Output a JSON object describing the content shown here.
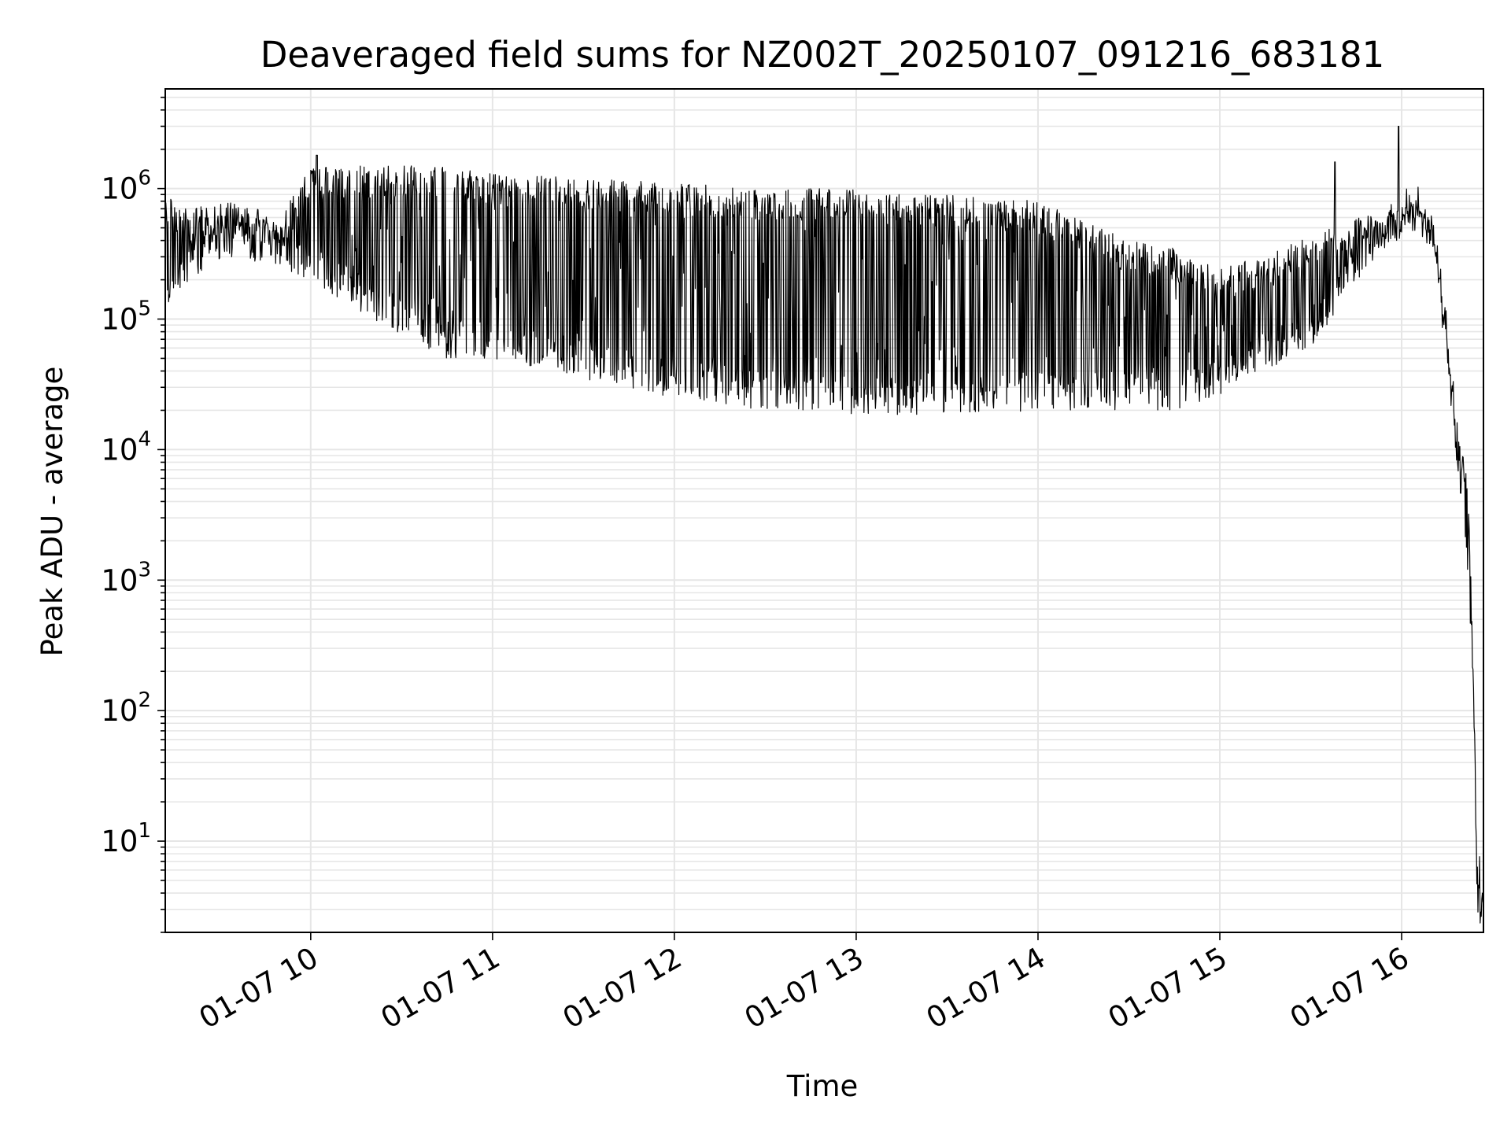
{
  "chart_data": {
    "type": "line",
    "title": "Deaveraged field sums for NZ002T_20250107_091216_683181",
    "xlabel": "Time",
    "ylabel": "Peak ADU - average",
    "y_scale": "log",
    "ylim": [
      2,
      5800000
    ],
    "xlim": [
      "2025-01-07 09:12",
      "2025-01-07 16:27"
    ],
    "grid": true,
    "line_color": "#000000",
    "grid_color": "#e6e6e6",
    "x_ticks": [
      {
        "value": "2025-01-07 10:00",
        "label": "01-07 10"
      },
      {
        "value": "2025-01-07 11:00",
        "label": "01-07 11"
      },
      {
        "value": "2025-01-07 12:00",
        "label": "01-07 12"
      },
      {
        "value": "2025-01-07 13:00",
        "label": "01-07 13"
      },
      {
        "value": "2025-01-07 14:00",
        "label": "01-07 14"
      },
      {
        "value": "2025-01-07 15:00",
        "label": "01-07 15"
      },
      {
        "value": "2025-01-07 16:00",
        "label": "01-07 16"
      }
    ],
    "y_ticks": [
      {
        "value": 10,
        "base": "10",
        "exp": "1"
      },
      {
        "value": 100,
        "base": "10",
        "exp": "2"
      },
      {
        "value": 1000,
        "base": "10",
        "exp": "3"
      },
      {
        "value": 10000,
        "base": "10",
        "exp": "4"
      },
      {
        "value": 100000,
        "base": "10",
        "exp": "5"
      },
      {
        "value": 1000000,
        "base": "10",
        "exp": "6"
      }
    ],
    "series": [
      {
        "envelope": [
          {
            "time": "2025-01-07 09:12",
            "high": 900000,
            "low": 120000
          },
          {
            "time": "2025-01-07 09:20",
            "high": 700000,
            "low": 200000
          },
          {
            "time": "2025-01-07 09:35",
            "high": 800000,
            "low": 300000
          },
          {
            "time": "2025-01-07 09:50",
            "high": 600000,
            "low": 250000
          },
          {
            "time": "2025-01-07 10:00",
            "high": 1500000,
            "low": 200000
          },
          {
            "time": "2025-01-07 10:20",
            "high": 1500000,
            "low": 100000
          },
          {
            "time": "2025-01-07 10:45",
            "high": 1500000,
            "low": 50000
          },
          {
            "time": "2025-01-07 11:00",
            "high": 1300000,
            "low": 50000
          },
          {
            "time": "2025-01-07 11:30",
            "high": 1200000,
            "low": 35000
          },
          {
            "time": "2025-01-07 12:00",
            "high": 1100000,
            "low": 25000
          },
          {
            "time": "2025-01-07 12:30",
            "high": 1000000,
            "low": 20000
          },
          {
            "time": "2025-01-07 13:00",
            "high": 1000000,
            "low": 18000
          },
          {
            "time": "2025-01-07 13:30",
            "high": 900000,
            "low": 18000
          },
          {
            "time": "2025-01-07 14:00",
            "high": 800000,
            "low": 20000
          },
          {
            "time": "2025-01-07 14:30",
            "high": 400000,
            "low": 20000
          },
          {
            "time": "2025-01-07 14:45",
            "high": 350000,
            "low": 20000
          },
          {
            "time": "2025-01-07 15:00",
            "high": 250000,
            "low": 25000
          },
          {
            "time": "2025-01-07 15:15",
            "high": 300000,
            "low": 40000
          },
          {
            "time": "2025-01-07 15:30",
            "high": 450000,
            "low": 60000
          },
          {
            "time": "2025-01-07 15:45",
            "high": 600000,
            "low": 180000
          },
          {
            "time": "2025-01-07 15:55",
            "high": 650000,
            "low": 350000
          },
          {
            "time": "2025-01-07 16:05",
            "high": 800000,
            "low": 600000
          },
          {
            "time": "2025-01-07 16:10",
            "high": 600000,
            "low": 400000
          },
          {
            "time": "2025-01-07 16:15",
            "high": 80000,
            "low": 60000
          },
          {
            "time": "2025-01-07 16:18",
            "high": 15000,
            "low": 10000
          },
          {
            "time": "2025-01-07 16:22",
            "high": 6000,
            "low": 1000
          },
          {
            "time": "2025-01-07 16:24",
            "high": 100,
            "low": 50
          },
          {
            "time": "2025-01-07 16:25",
            "high": 4,
            "low": 4
          },
          {
            "time": "2025-01-07 16:27",
            "high": 4,
            "low": 4
          }
        ],
        "spikes": [
          {
            "time": "2025-01-07 10:02",
            "value": 1800000
          },
          {
            "time": "2025-01-07 15:38",
            "value": 1600000
          },
          {
            "time": "2025-01-07 15:59",
            "value": 3000000
          }
        ]
      }
    ]
  }
}
